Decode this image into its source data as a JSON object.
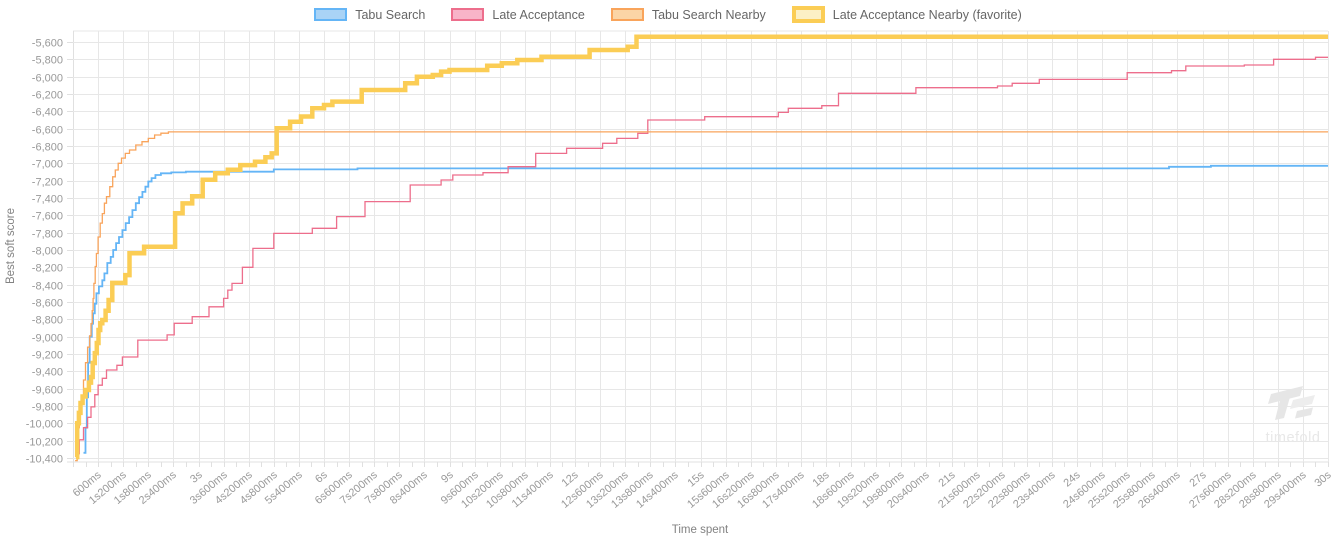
{
  "watermark": {
    "text": "timefold"
  },
  "chart_data": {
    "type": "line",
    "stepped": true,
    "title": "",
    "xlabel": "Time spent",
    "ylabel": "Best soft score",
    "x_unit": "ms",
    "xlim_ms": [
      0,
      30000
    ],
    "ylim": [
      -10446,
      -5473
    ],
    "grid": true,
    "legend_position": "top",
    "minor_tick_ms": 300,
    "y_ticks": [
      {
        "value": -5600,
        "label": "-5,600"
      },
      {
        "value": -5800,
        "label": "-5,800"
      },
      {
        "value": -6000,
        "label": "-6,000"
      },
      {
        "value": -6200,
        "label": "-6,200"
      },
      {
        "value": -6400,
        "label": "-6,400"
      },
      {
        "value": -6600,
        "label": "-6,600"
      },
      {
        "value": -6800,
        "label": "-6,800"
      },
      {
        "value": -7000,
        "label": "-7,000"
      },
      {
        "value": -7200,
        "label": "-7,200"
      },
      {
        "value": -7400,
        "label": "-7,400"
      },
      {
        "value": -7600,
        "label": "-7,600"
      },
      {
        "value": -7800,
        "label": "-7,800"
      },
      {
        "value": -8000,
        "label": "-8,000"
      },
      {
        "value": -8200,
        "label": "-8,200"
      },
      {
        "value": -8400,
        "label": "-8,400"
      },
      {
        "value": -8600,
        "label": "-8,600"
      },
      {
        "value": -8800,
        "label": "-8,800"
      },
      {
        "value": -9000,
        "label": "-9,000"
      },
      {
        "value": -9200,
        "label": "-9,200"
      },
      {
        "value": -9400,
        "label": "-9,400"
      },
      {
        "value": -9600,
        "label": "-9,600"
      },
      {
        "value": -9800,
        "label": "-9,800"
      },
      {
        "value": -10000,
        "label": "-10,000"
      },
      {
        "value": -10200,
        "label": "-10,200"
      },
      {
        "value": -10400,
        "label": "-10,400"
      }
    ],
    "x_ticks": [
      {
        "ms": 600,
        "label": "600ms"
      },
      {
        "ms": 1200,
        "label": "1s200ms"
      },
      {
        "ms": 1800,
        "label": "1s800ms"
      },
      {
        "ms": 2400,
        "label": "2s400ms"
      },
      {
        "ms": 3000,
        "label": "3s"
      },
      {
        "ms": 3600,
        "label": "3s600ms"
      },
      {
        "ms": 4200,
        "label": "4s200ms"
      },
      {
        "ms": 4800,
        "label": "4s800ms"
      },
      {
        "ms": 5400,
        "label": "5s400ms"
      },
      {
        "ms": 6000,
        "label": "6s"
      },
      {
        "ms": 6600,
        "label": "6s600ms"
      },
      {
        "ms": 7200,
        "label": "7s200ms"
      },
      {
        "ms": 7800,
        "label": "7s800ms"
      },
      {
        "ms": 8400,
        "label": "8s400ms"
      },
      {
        "ms": 9000,
        "label": "9s"
      },
      {
        "ms": 9600,
        "label": "9s600ms"
      },
      {
        "ms": 10200,
        "label": "10s200ms"
      },
      {
        "ms": 10800,
        "label": "10s800ms"
      },
      {
        "ms": 11400,
        "label": "11s400ms"
      },
      {
        "ms": 12000,
        "label": "12s"
      },
      {
        "ms": 12600,
        "label": "12s600ms"
      },
      {
        "ms": 13200,
        "label": "13s200ms"
      },
      {
        "ms": 13800,
        "label": "13s800ms"
      },
      {
        "ms": 14400,
        "label": "14s400ms"
      },
      {
        "ms": 15000,
        "label": "15s"
      },
      {
        "ms": 15600,
        "label": "15s600ms"
      },
      {
        "ms": 16200,
        "label": "16s200ms"
      },
      {
        "ms": 16800,
        "label": "16s800ms"
      },
      {
        "ms": 17400,
        "label": "17s400ms"
      },
      {
        "ms": 18000,
        "label": "18s"
      },
      {
        "ms": 18600,
        "label": "18s600ms"
      },
      {
        "ms": 19200,
        "label": "19s200ms"
      },
      {
        "ms": 19800,
        "label": "19s800ms"
      },
      {
        "ms": 20400,
        "label": "20s400ms"
      },
      {
        "ms": 21000,
        "label": "21s"
      },
      {
        "ms": 21600,
        "label": "21s600ms"
      },
      {
        "ms": 22200,
        "label": "22s200ms"
      },
      {
        "ms": 22800,
        "label": "22s800ms"
      },
      {
        "ms": 23400,
        "label": "23s400ms"
      },
      {
        "ms": 24000,
        "label": "24s"
      },
      {
        "ms": 24600,
        "label": "24s600ms"
      },
      {
        "ms": 25200,
        "label": "25s200ms"
      },
      {
        "ms": 25800,
        "label": "25s800ms"
      },
      {
        "ms": 26400,
        "label": "26s400ms"
      },
      {
        "ms": 27000,
        "label": "27s"
      },
      {
        "ms": 27600,
        "label": "27s600ms"
      },
      {
        "ms": 28200,
        "label": "28s200ms"
      },
      {
        "ms": 28800,
        "label": "28s800ms"
      },
      {
        "ms": 29400,
        "label": "29s400ms"
      },
      {
        "ms": 30000,
        "label": "30s"
      }
    ],
    "series": [
      {
        "name": "Tabu Search",
        "color": "#64B5F6",
        "swatch_fill": "#A9D3F6",
        "width": 1.8,
        "favorite": false,
        "points": [
          [
            250,
            -10340
          ],
          [
            300,
            -10050
          ],
          [
            330,
            -9700
          ],
          [
            360,
            -9300
          ],
          [
            400,
            -9000
          ],
          [
            450,
            -8850
          ],
          [
            480,
            -8730
          ],
          [
            520,
            -8620
          ],
          [
            560,
            -8500
          ],
          [
            620,
            -8420
          ],
          [
            700,
            -8350
          ],
          [
            750,
            -8270
          ],
          [
            820,
            -8150
          ],
          [
            900,
            -8080
          ],
          [
            960,
            -8000
          ],
          [
            1030,
            -7920
          ],
          [
            1100,
            -7850
          ],
          [
            1180,
            -7770
          ],
          [
            1260,
            -7690
          ],
          [
            1340,
            -7620
          ],
          [
            1420,
            -7540
          ],
          [
            1500,
            -7460
          ],
          [
            1580,
            -7390
          ],
          [
            1660,
            -7330
          ],
          [
            1730,
            -7270
          ],
          [
            1800,
            -7210
          ],
          [
            1880,
            -7170
          ],
          [
            1970,
            -7135
          ],
          [
            2100,
            -7115
          ],
          [
            2350,
            -7105
          ],
          [
            2700,
            -7096
          ],
          [
            4800,
            -7070
          ],
          [
            6800,
            -7058
          ],
          [
            26200,
            -7040
          ],
          [
            27200,
            -7028
          ],
          [
            30000,
            -7028
          ]
        ]
      },
      {
        "name": "Late Acceptance",
        "color": "#ED6E8C",
        "swatch_fill": "#F8B4C8",
        "width": 1.3,
        "favorite": false,
        "points": [
          [
            80,
            -10350
          ],
          [
            150,
            -10190
          ],
          [
            250,
            -10050
          ],
          [
            350,
            -9930
          ],
          [
            430,
            -9810
          ],
          [
            520,
            -9670
          ],
          [
            600,
            -9560
          ],
          [
            700,
            -9480
          ],
          [
            800,
            -9385
          ],
          [
            1050,
            -9330
          ],
          [
            1180,
            -9235
          ],
          [
            1550,
            -9040
          ],
          [
            2250,
            -8980
          ],
          [
            2420,
            -8846
          ],
          [
            2850,
            -8770
          ],
          [
            3250,
            -8655
          ],
          [
            3600,
            -8558
          ],
          [
            3700,
            -8462
          ],
          [
            3800,
            -8385
          ],
          [
            4050,
            -8200
          ],
          [
            4300,
            -7981
          ],
          [
            4800,
            -7808
          ],
          [
            5720,
            -7750
          ],
          [
            6300,
            -7615
          ],
          [
            6980,
            -7442
          ],
          [
            8060,
            -7250
          ],
          [
            8800,
            -7192
          ],
          [
            9080,
            -7135
          ],
          [
            9800,
            -7108
          ],
          [
            10400,
            -7039
          ],
          [
            11060,
            -6885
          ],
          [
            11800,
            -6827
          ],
          [
            12660,
            -6769
          ],
          [
            13000,
            -6712
          ],
          [
            13500,
            -6654
          ],
          [
            13740,
            -6500
          ],
          [
            15100,
            -6462
          ],
          [
            16860,
            -6412
          ],
          [
            17100,
            -6365
          ],
          [
            17900,
            -6335
          ],
          [
            18300,
            -6192
          ],
          [
            20150,
            -6127
          ],
          [
            22100,
            -6108
          ],
          [
            22450,
            -6077
          ],
          [
            23100,
            -6031
          ],
          [
            25200,
            -5954
          ],
          [
            26260,
            -5931
          ],
          [
            26600,
            -5877
          ],
          [
            28000,
            -5865
          ],
          [
            28700,
            -5800
          ],
          [
            29700,
            -5777
          ],
          [
            30000,
            -5777
          ]
        ]
      },
      {
        "name": "Tabu Search Nearby",
        "color": "#F9A45B",
        "swatch_fill": "#FBD5A6",
        "width": 1.3,
        "favorite": false,
        "points": [
          [
            50,
            -10430
          ],
          [
            100,
            -10050
          ],
          [
            150,
            -9850
          ],
          [
            200,
            -9690
          ],
          [
            250,
            -9500
          ],
          [
            300,
            -9300
          ],
          [
            350,
            -9120
          ],
          [
            400,
            -8990
          ],
          [
            430,
            -8850
          ],
          [
            460,
            -8700
          ],
          [
            480,
            -8560
          ],
          [
            500,
            -8385
          ],
          [
            530,
            -8190
          ],
          [
            560,
            -8040
          ],
          [
            600,
            -7850
          ],
          [
            650,
            -7690
          ],
          [
            700,
            -7580
          ],
          [
            750,
            -7460
          ],
          [
            800,
            -7385
          ],
          [
            880,
            -7270
          ],
          [
            950,
            -7155
          ],
          [
            1010,
            -7077
          ],
          [
            1080,
            -7000
          ],
          [
            1160,
            -6940
          ],
          [
            1250,
            -6885
          ],
          [
            1350,
            -6846
          ],
          [
            1500,
            -6788
          ],
          [
            1650,
            -6750
          ],
          [
            1800,
            -6712
          ],
          [
            1950,
            -6673
          ],
          [
            2100,
            -6652
          ],
          [
            2280,
            -6637
          ],
          [
            30000,
            -6637
          ]
        ]
      },
      {
        "name": "Late Acceptance Nearby (favorite)",
        "color": "#FBCD55",
        "swatch_fill": "#FCF0C5",
        "width": 4.5,
        "favorite": true,
        "points": [
          [
            70,
            -10390
          ],
          [
            100,
            -10000
          ],
          [
            140,
            -9880
          ],
          [
            180,
            -9765
          ],
          [
            230,
            -9690
          ],
          [
            300,
            -9615
          ],
          [
            380,
            -9530
          ],
          [
            430,
            -9465
          ],
          [
            470,
            -9304
          ],
          [
            520,
            -9190
          ],
          [
            570,
            -9073
          ],
          [
            610,
            -8923
          ],
          [
            650,
            -8846
          ],
          [
            700,
            -8808
          ],
          [
            780,
            -8700
          ],
          [
            850,
            -8577
          ],
          [
            940,
            -8380
          ],
          [
            1250,
            -8290
          ],
          [
            1350,
            -8038
          ],
          [
            1700,
            -7962
          ],
          [
            2440,
            -7577
          ],
          [
            2620,
            -7462
          ],
          [
            2850,
            -7380
          ],
          [
            3100,
            -7190
          ],
          [
            3400,
            -7115
          ],
          [
            3700,
            -7075
          ],
          [
            4000,
            -7020
          ],
          [
            4350,
            -6981
          ],
          [
            4600,
            -6930
          ],
          [
            4750,
            -6885
          ],
          [
            4870,
            -6596
          ],
          [
            5190,
            -6519
          ],
          [
            5450,
            -6460
          ],
          [
            5720,
            -6365
          ],
          [
            6000,
            -6327
          ],
          [
            6200,
            -6288
          ],
          [
            6900,
            -6154
          ],
          [
            7940,
            -6077
          ],
          [
            8220,
            -6000
          ],
          [
            8600,
            -5981
          ],
          [
            8800,
            -5942
          ],
          [
            9000,
            -5923
          ],
          [
            9900,
            -5873
          ],
          [
            10250,
            -5846
          ],
          [
            10620,
            -5808
          ],
          [
            11200,
            -5769
          ],
          [
            12350,
            -5692
          ],
          [
            13260,
            -5654
          ],
          [
            13470,
            -5540
          ],
          [
            30000,
            -5540
          ]
        ]
      }
    ]
  }
}
